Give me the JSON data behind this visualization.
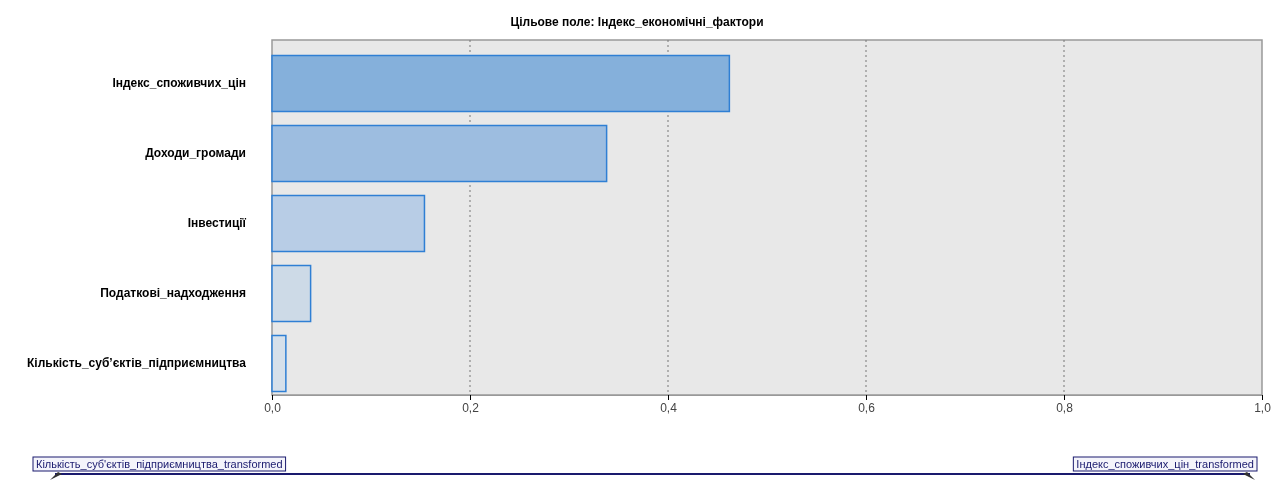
{
  "chart_data": {
    "type": "bar",
    "orientation": "horizontal",
    "title": "Цільове поле: Індекс_економічні_фактори",
    "categories": [
      "Індекс_споживчих_цін",
      "Доходи_громади",
      "Інвестиції",
      "Податкові_надходження",
      "Кількість_суб’єктів_підприємництва"
    ],
    "values": [
      0.462,
      0.338,
      0.154,
      0.039,
      0.014
    ],
    "colors": [
      "#85b0db",
      "#9dbde0",
      "#b8cde6",
      "#cddae7",
      "#d6e0ea"
    ],
    "xlim": [
      0,
      1
    ],
    "xticks": [
      {
        "value": 0,
        "label": "0,0"
      },
      {
        "value": 0.2,
        "label": "0,2"
      },
      {
        "value": 0.4,
        "label": "0,4"
      },
      {
        "value": 0.6,
        "label": "0,6"
      },
      {
        "value": 0.8,
        "label": "0,8"
      },
      {
        "value": 1,
        "label": "1,0"
      }
    ],
    "grid": "x",
    "annotations": [
      "Кількість_суб'єктів_підприємництва_transformed",
      "Індекс_споживчих_цін_transformed"
    ]
  }
}
